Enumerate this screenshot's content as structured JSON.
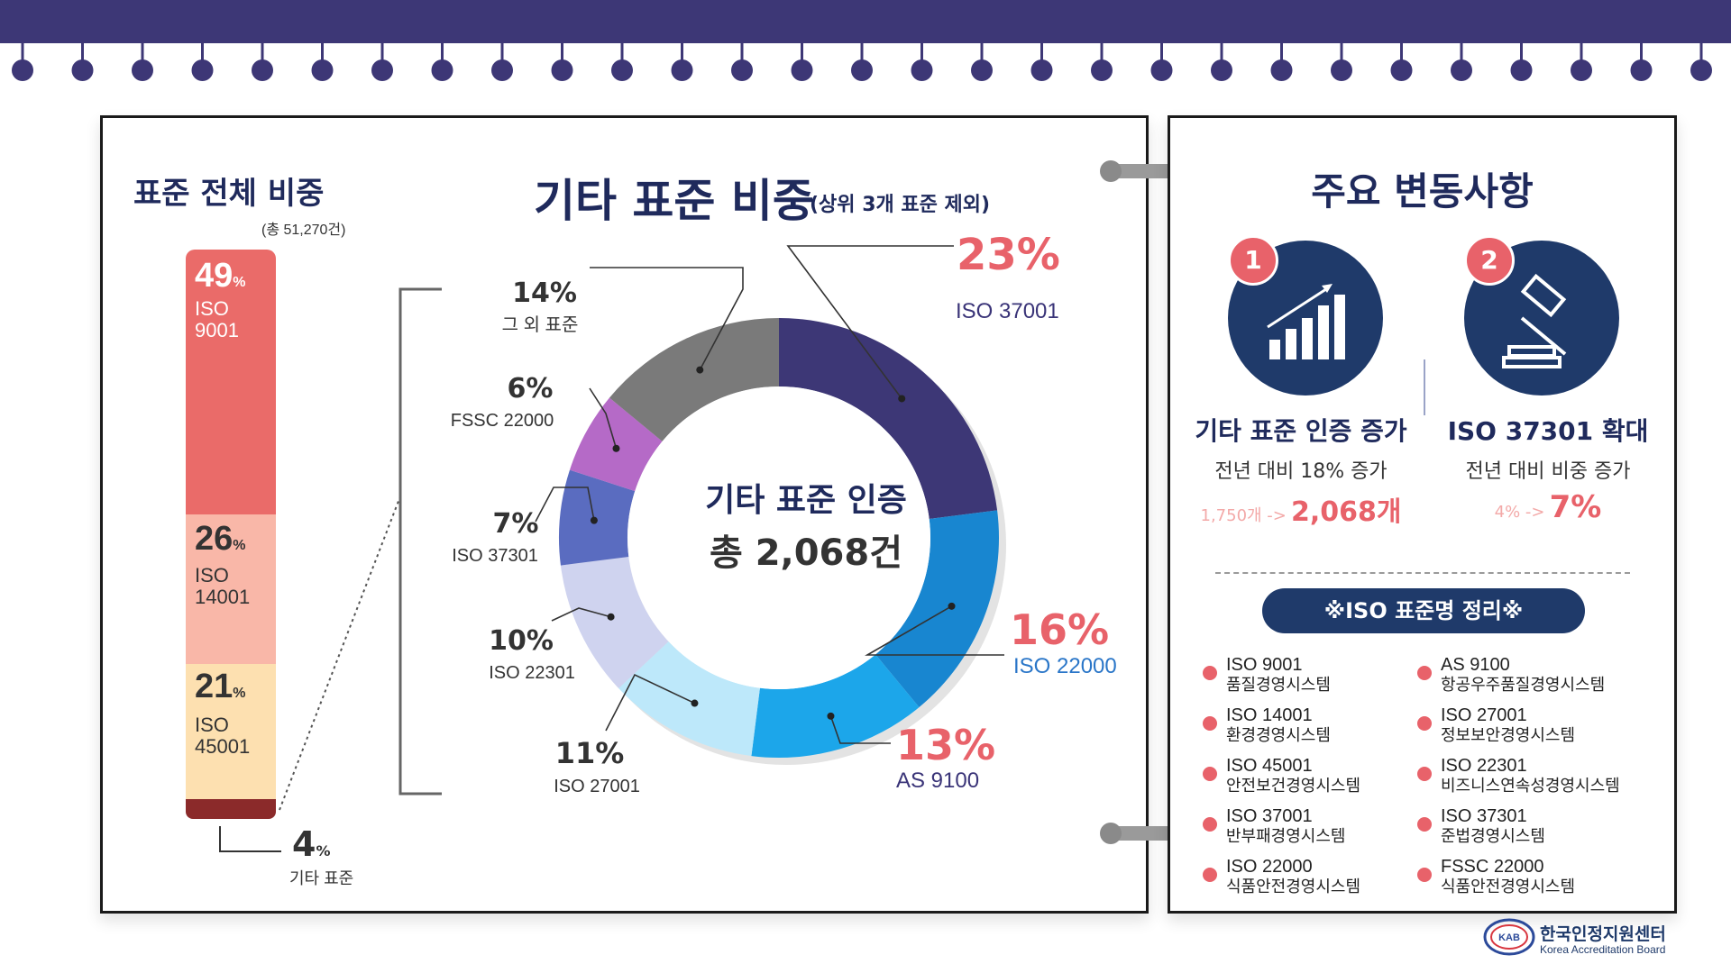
{
  "colors": {
    "navy": "#3d3776",
    "title": "#1f2a5c",
    "accent": "#e8626a",
    "iso9001": "#ea6b69",
    "iso14001": "#f9b7a8",
    "iso45001": "#fde0b0",
    "other": "#8b2a2a"
  },
  "left_chart": {
    "title": "표준 전체 비중",
    "subtitle": "(총 51,270건)",
    "segments": [
      {
        "pct": "49",
        "unit": "%",
        "name1": "ISO",
        "name2": "9001"
      },
      {
        "pct": "26",
        "unit": "%",
        "name1": "ISO",
        "name2": "14001"
      },
      {
        "pct": "21",
        "unit": "%",
        "name1": "ISO",
        "name2": "45001"
      },
      {
        "pct": "4",
        "unit": "%",
        "label": "기타 표준"
      }
    ]
  },
  "donut": {
    "title": "기타 표준 비중",
    "title_note": "(상위 3개 표준 제외)",
    "center_line1": "기타 표준 인증",
    "center_line2": "총 2,068건"
  },
  "chart_data": [
    {
      "type": "bar",
      "title": "표준 전체 비중",
      "subtitle": "(총 51,270건)",
      "categories": [
        "ISO 9001",
        "ISO 14001",
        "ISO 45001",
        "기타 표준"
      ],
      "values": [
        49,
        26,
        21,
        4
      ],
      "unit": "%",
      "stacked": true
    },
    {
      "type": "pie",
      "title": "기타 표준 비중",
      "subtitle": "(상위 3개 표준 제외)",
      "categories": [
        "ISO 37001",
        "ISO 22000",
        "AS 9100",
        "ISO 27001",
        "ISO 22301",
        "ISO 37301",
        "FSSC 22000",
        "그 외 표준"
      ],
      "values": [
        23,
        16,
        13,
        11,
        10,
        7,
        6,
        14
      ],
      "colors": [
        "#3d3776",
        "#1886d0",
        "#1ca6ea",
        "#bde8fa",
        "#cfd3ef",
        "#5a6cc0",
        "#b56ac7",
        "#7a7a7a"
      ],
      "unit": "%"
    }
  ],
  "right": {
    "title": "주요 변동사항",
    "items": [
      {
        "num": "1",
        "heading": "기타 표준 인증 증가",
        "sub": "전년 대비  18% 증가",
        "from": "1,750개 ->",
        "to": "2,068개"
      },
      {
        "num": "2",
        "heading": "ISO 37301 확대",
        "sub": "전년 대비 비중 증가",
        "from": "4% ->",
        "to": "7%"
      }
    ],
    "glossary_title": "※ISO 표준명 정리※",
    "glossary": [
      {
        "code": "ISO 9001",
        "name": "품질경영시스템"
      },
      {
        "code": "AS 9100",
        "name": "항공우주품질경영시스템"
      },
      {
        "code": "ISO 14001",
        "name": "환경경영시스템"
      },
      {
        "code": "ISO 27001",
        "name": "정보보안경영시스템"
      },
      {
        "code": "ISO 45001",
        "name": "안전보건경영시스템"
      },
      {
        "code": "ISO 22301",
        "name": "비즈니스연속성경영시스템"
      },
      {
        "code": "ISO 37001",
        "name": "반부패경영시스템"
      },
      {
        "code": "ISO 37301",
        "name": "준법경영시스템"
      },
      {
        "code": "ISO 22000",
        "name": "식품안전경영시스템"
      },
      {
        "code": "FSSC 22000",
        "name": "식품안전경영시스템"
      }
    ]
  },
  "footer": {
    "logo_mark": "KAB",
    "org_ko": "한국인정지원센터",
    "org_en": "Korea Accreditation Board"
  }
}
